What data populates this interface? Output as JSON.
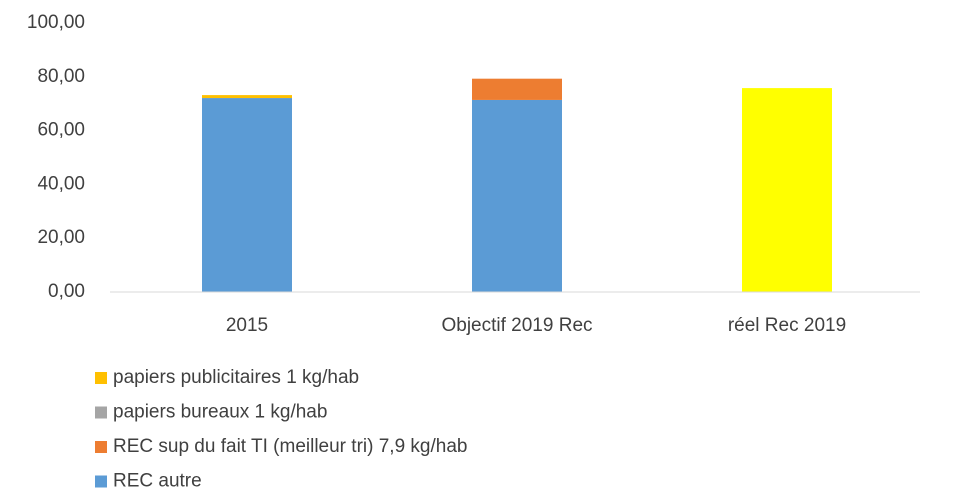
{
  "chart_data": {
    "type": "stacked_bar",
    "categories": [
      "2015",
      "Objectif 2019 Rec",
      "réel Rec 2019"
    ],
    "series": [
      {
        "name": "REC autre",
        "color": "#5b9bd5",
        "values": [
          72.1,
          71.4,
          null
        ]
      },
      {
        "name": "REC sup du fait TI (meilleur tri) 7,9 kg/hab",
        "color": "#ed7d31",
        "values": [
          null,
          7.9,
          null
        ]
      },
      {
        "name": "papiers bureaux 1 kg/hab",
        "color": "#a5a5a5",
        "values": [
          null,
          null,
          null
        ]
      },
      {
        "name": "papiers publicitaires 1 kg/hab",
        "color": "#ffc000",
        "values": [
          1.1,
          null,
          null
        ]
      },
      {
        "name": null,
        "color": "#ffff00",
        "values": [
          null,
          null,
          75.8
        ]
      }
    ],
    "ylim": [
      0,
      100
    ],
    "yticks": [
      {
        "value": 0,
        "label": "0,00"
      },
      {
        "value": 20,
        "label": "20,00"
      },
      {
        "value": 40,
        "label": "40,00"
      },
      {
        "value": 60,
        "label": "60,00"
      },
      {
        "value": 80,
        "label": "80,00"
      },
      {
        "value": 100,
        "label": "100,00"
      }
    ],
    "grid": false,
    "legend": "bottom"
  }
}
